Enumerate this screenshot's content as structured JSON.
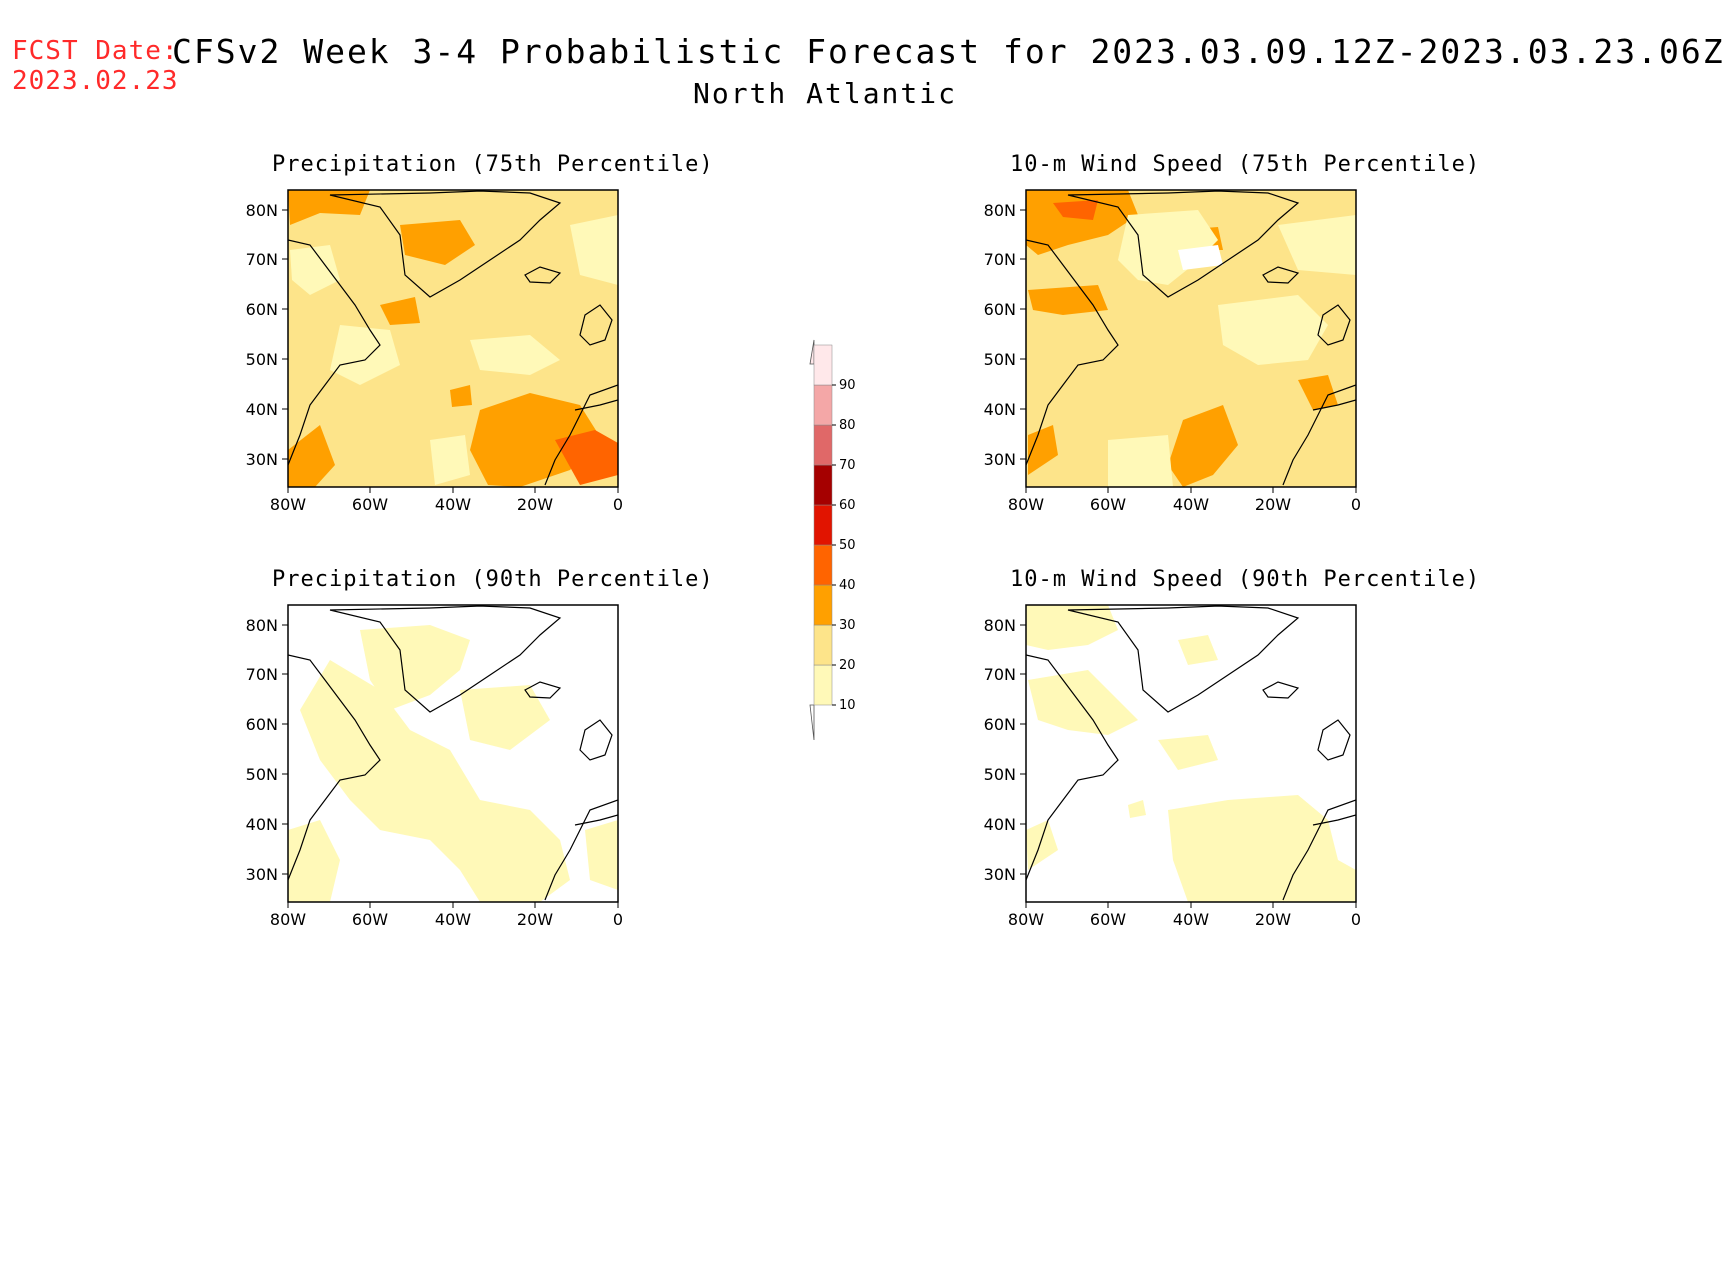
{
  "header": {
    "fcst_label": "FCST Date:",
    "fcst_date": "2023.02.23",
    "title": "CFSv2 Week 3-4 Probabilistic Forecast for 2023.03.09.12Z-2023.03.23.06Z",
    "region": "North Atlantic"
  },
  "axes": {
    "lat_ticks": [
      "80N",
      "70N",
      "60N",
      "50N",
      "40N",
      "30N"
    ],
    "lon_ticks": [
      "80W",
      "60W",
      "40W",
      "20W",
      "0"
    ]
  },
  "panels": [
    {
      "id": "precip-75",
      "title": "Precipitation (75th Percentile)"
    },
    {
      "id": "wind-75",
      "title": "10-m Wind Speed (75th Percentile)"
    },
    {
      "id": "precip-90",
      "title": "Precipitation (90th Percentile)"
    },
    {
      "id": "wind-90",
      "title": "10-m Wind Speed (90th Percentile)"
    }
  ],
  "colorbar": {
    "levels": [
      "10",
      "20",
      "30",
      "40",
      "50",
      "60",
      "70",
      "80",
      "90"
    ],
    "colors": [
      "#fff9b8",
      "#fde48a",
      "#ffa000",
      "#ff6400",
      "#e11400",
      "#a50000",
      "#e06868",
      "#f4a7a7",
      "#ffe8ea"
    ]
  }
}
